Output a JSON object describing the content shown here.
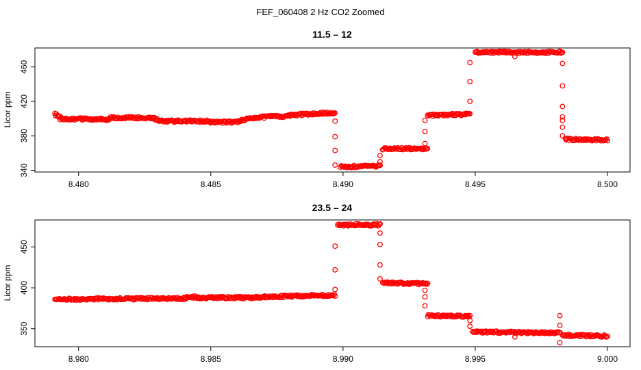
{
  "figure": {
    "suptitle": "FEF_060408  2 Hz CO2 Zoomed"
  },
  "chart_data": [
    {
      "type": "scatter",
      "title": "11.5 – 12",
      "xlabel": "",
      "ylabel": "Licor ppm",
      "xlim": [
        8.4791,
        8.5
      ],
      "ylim": [
        338,
        482
      ],
      "xticks": [
        8.48,
        8.485,
        8.49,
        8.495,
        8.5
      ],
      "xtick_labels": [
        "8.480",
        "8.485",
        "8.490",
        "8.495",
        "8.500"
      ],
      "yticks": [
        340,
        380,
        420,
        460
      ],
      "ytick_labels": [
        "340",
        "380",
        "420",
        "460"
      ],
      "marker": "open-circle",
      "color": "#ff0000",
      "segments": [
        {
          "x": [
            8.4791,
            8.4793
          ],
          "y": [
            405,
            402
          ]
        },
        {
          "x": [
            8.4793,
            8.4812
          ],
          "y": [
            400,
            399
          ]
        },
        {
          "x": [
            8.4812,
            8.4828
          ],
          "y": [
            401,
            401
          ]
        },
        {
          "x": [
            8.4828,
            8.483
          ],
          "y": [
            401,
            398
          ]
        },
        {
          "x": [
            8.483,
            8.485
          ],
          "y": [
            397,
            397
          ]
        },
        {
          "x": [
            8.485,
            8.4861
          ],
          "y": [
            396,
            396
          ]
        },
        {
          "x": [
            8.4861,
            8.4864
          ],
          "y": [
            397,
            400
          ]
        },
        {
          "x": [
            8.4864,
            8.488
          ],
          "y": [
            401,
            403
          ]
        },
        {
          "x": [
            8.488,
            8.4897
          ],
          "y": [
            404,
            407
          ]
        },
        {
          "x": [
            8.4899,
            8.4914
          ],
          "y": [
            344,
            345
          ]
        },
        {
          "x": [
            8.4915,
            8.4932
          ],
          "y": [
            365,
            365
          ]
        },
        {
          "x": [
            8.4932,
            8.4948
          ],
          "y": [
            404,
            405
          ]
        },
        {
          "x": [
            8.495,
            8.4983
          ],
          "y": [
            477,
            477
          ]
        },
        {
          "x": [
            8.4984,
            8.5
          ],
          "y": [
            376,
            375
          ]
        }
      ],
      "transitions": [
        {
          "x": 8.4897,
          "y": [
            397,
            379,
            363,
            346
          ]
        },
        {
          "x": 8.4914,
          "y": [
            350,
            357
          ]
        },
        {
          "x": 8.4931,
          "y": [
            371,
            385,
            398
          ]
        },
        {
          "x": 8.4948,
          "y": [
            420,
            443,
            465
          ]
        },
        {
          "x": 8.4965,
          "y": [
            472
          ]
        },
        {
          "x": 8.4983,
          "y": [
            464,
            438,
            414,
            402,
            398,
            390,
            380
          ]
        }
      ]
    },
    {
      "type": "scatter",
      "title": "23.5 – 24",
      "xlabel": "",
      "ylabel": "Licor ppm",
      "xlim": [
        8.9791,
        9.0
      ],
      "ylim": [
        328,
        483
      ],
      "xticks": [
        8.98,
        8.985,
        8.99,
        8.995,
        9.0
      ],
      "xtick_labels": [
        "8.980",
        "8.985",
        "8.990",
        "8.995",
        "9.000"
      ],
      "yticks": [
        350,
        400,
        450
      ],
      "ytick_labels": [
        "350",
        "400",
        "450"
      ],
      "marker": "open-circle",
      "color": "#ff0000",
      "segments": [
        {
          "x": [
            8.9791,
            8.984
          ],
          "y": [
            386,
            387
          ]
        },
        {
          "x": [
            8.984,
            8.9845
          ],
          "y": [
            388,
            389
          ]
        },
        {
          "x": [
            8.9845,
            8.987
          ],
          "y": [
            388,
            388
          ]
        },
        {
          "x": [
            8.987,
            8.9897
          ],
          "y": [
            389,
            391
          ]
        },
        {
          "x": [
            8.9898,
            8.9914
          ],
          "y": [
            477,
            477
          ]
        },
        {
          "x": [
            8.9915,
            8.9932
          ],
          "y": [
            406,
            405
          ]
        },
        {
          "x": [
            8.9932,
            8.9948
          ],
          "y": [
            366,
            365
          ]
        },
        {
          "x": [
            8.9949,
            8.9982
          ],
          "y": [
            346,
            345
          ]
        },
        {
          "x": [
            8.9983,
            9.0
          ],
          "y": [
            342,
            341
          ]
        }
      ],
      "transitions": [
        {
          "x": 8.9897,
          "y": [
            398,
            422,
            451
          ]
        },
        {
          "x": 8.9914,
          "y": [
            467,
            453,
            428,
            411
          ]
        },
        {
          "x": 8.9931,
          "y": [
            397,
            389,
            378
          ]
        },
        {
          "x": 8.9948,
          "y": [
            360,
            353
          ]
        },
        {
          "x": 8.9965,
          "y": [
            340
          ]
        },
        {
          "x": 8.9982,
          "y": [
            366,
            354,
            333
          ]
        }
      ]
    }
  ]
}
